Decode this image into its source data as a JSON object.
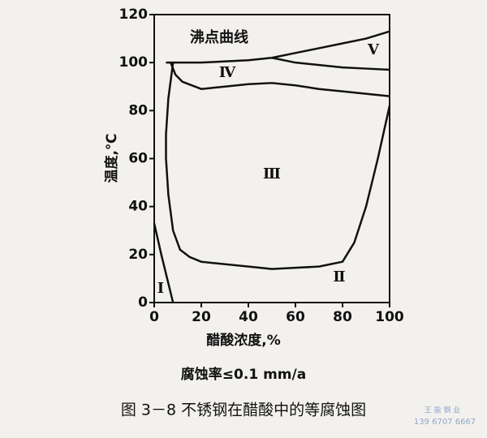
{
  "chart_data": {
    "type": "line",
    "title": "图 3－8   不锈钢在醋酸中的等腐蚀图",
    "subtitle": "腐蚀率≤0.1 mm/a",
    "x_label": "醋酸浓度,%",
    "y_label": "温度,℃",
    "xlim": [
      0,
      100
    ],
    "xticks": [
      0,
      20,
      40,
      60,
      80,
      100
    ],
    "ylim": [
      0,
      120
    ],
    "yticks": [
      0,
      20,
      40,
      60,
      80,
      100,
      120
    ],
    "annotations": [
      "沸点曲线",
      "V",
      "Ⅳ",
      "Ⅲ",
      "Ⅱ",
      "Ⅰ"
    ],
    "watermark": [
      "王 能 钢 业",
      "139 6707 6667"
    ],
    "series": [
      {
        "color": "#111",
        "x": [
          5,
          20,
          40,
          50,
          60,
          70,
          80,
          90,
          100
        ],
        "values": [
          100,
          100,
          101,
          102,
          104,
          106,
          108,
          110,
          113
        ]
      },
      {
        "color": "#111",
        "x": [
          50,
          60,
          70,
          80,
          90,
          100
        ],
        "values": [
          102,
          100,
          99,
          98,
          97.5,
          97
        ]
      },
      {
        "color": "#111",
        "x": [
          7,
          9,
          12,
          20,
          30,
          40,
          50,
          60,
          70,
          80,
          90,
          100
        ],
        "values": [
          100,
          95,
          92,
          89,
          90,
          91,
          91.5,
          90.5,
          89,
          88,
          87,
          86
        ]
      },
      {
        "color": "#111",
        "x": [
          8,
          6,
          5,
          5,
          6,
          8,
          11,
          15,
          20,
          40,
          50,
          60,
          70,
          80,
          85,
          90,
          95,
          100
        ],
        "values": [
          100,
          85,
          70,
          60,
          45,
          30,
          22,
          19,
          17,
          15,
          14,
          14.5,
          15,
          17,
          25,
          40,
          60,
          82
        ]
      },
      {
        "color": "#111",
        "x": [
          0,
          3,
          6,
          8
        ],
        "values": [
          33,
          20,
          8,
          0
        ]
      }
    ]
  }
}
